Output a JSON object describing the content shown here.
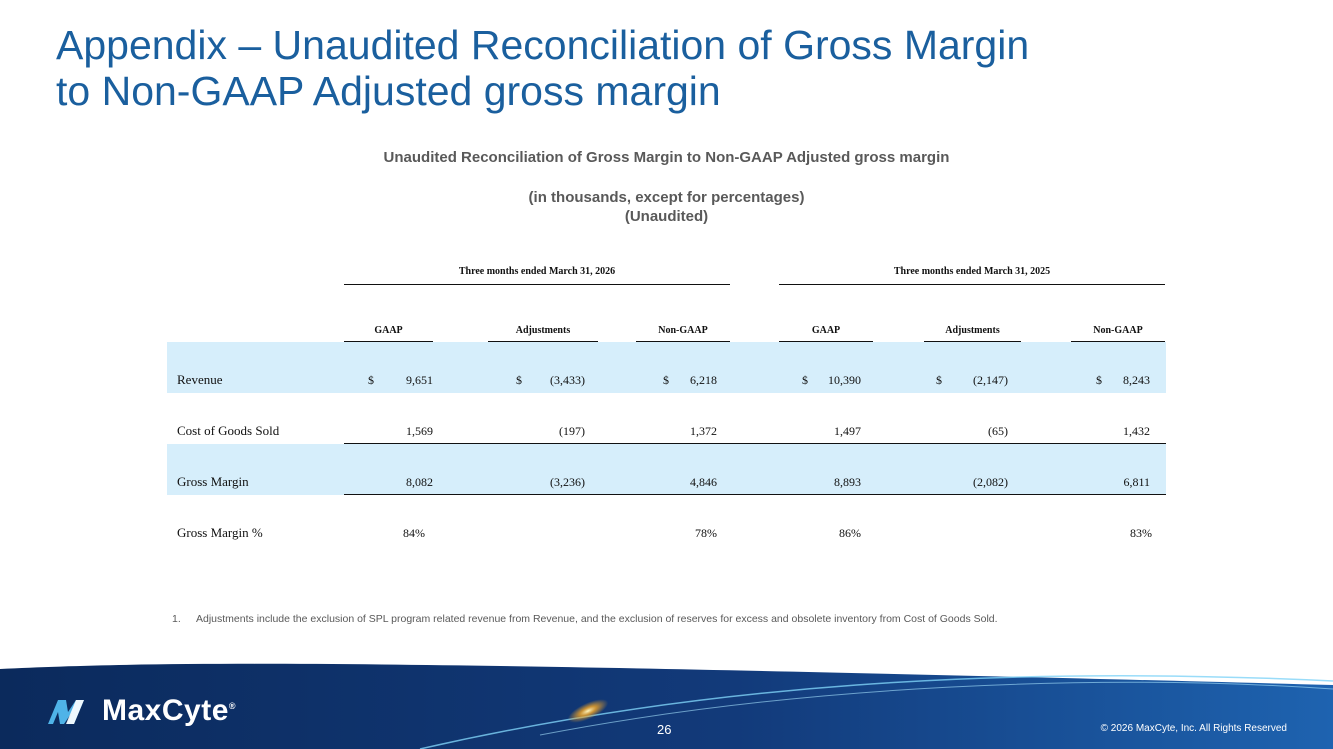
{
  "slide": {
    "title_line1": "Appendix – Unaudited Reconciliation of Gross Margin",
    "title_line2": "to Non-GAAP Adjusted gross margin",
    "subtitle": "Unaudited Reconciliation of Gross Margin to Non-GAAP Adjusted gross margin",
    "units": "(in thousands, except for percentages)",
    "unaudited": "(Unaudited)"
  },
  "table": {
    "periods": [
      "Three months ended March 31, 2026",
      "Three months ended March 31, 2025"
    ],
    "columns": [
      "GAAP",
      "Adjustments",
      "Non-GAAP",
      "GAAP",
      "Adjustments",
      "Non-GAAP"
    ],
    "currency": "$",
    "rows": [
      {
        "label": "Revenue",
        "values": [
          "9,651",
          "(3,433)",
          "6,218",
          "10,390",
          "(2,147)",
          "8,243"
        ]
      },
      {
        "label": "Cost of Goods Sold",
        "values": [
          "1,569",
          "(197)",
          "1,372",
          "1,497",
          "(65)",
          "1,432"
        ]
      },
      {
        "label": "Gross Margin",
        "values": [
          "8,082",
          "(3,236)",
          "4,846",
          "8,893",
          "(2,082)",
          "6,811"
        ]
      },
      {
        "label": "Gross Margin %",
        "values": [
          "84%",
          "",
          "78%",
          "86%",
          "",
          "83%"
        ]
      }
    ]
  },
  "footnote": {
    "number": "1.",
    "text": "Adjustments include the exclusion of SPL program related revenue from Revenue, and the exclusion of reserves for excess and obsolete inventory from Cost of Goods Sold."
  },
  "footer": {
    "brand": "MaxCyte",
    "registered": "®",
    "page_number": "26",
    "copyright": "© 2026 MaxCyte, Inc. All Rights Reserved"
  },
  "colors": {
    "title_blue": "#1a5f9e",
    "band_blue": "#d6eefb",
    "footer_navy": "#0b2a5c"
  }
}
